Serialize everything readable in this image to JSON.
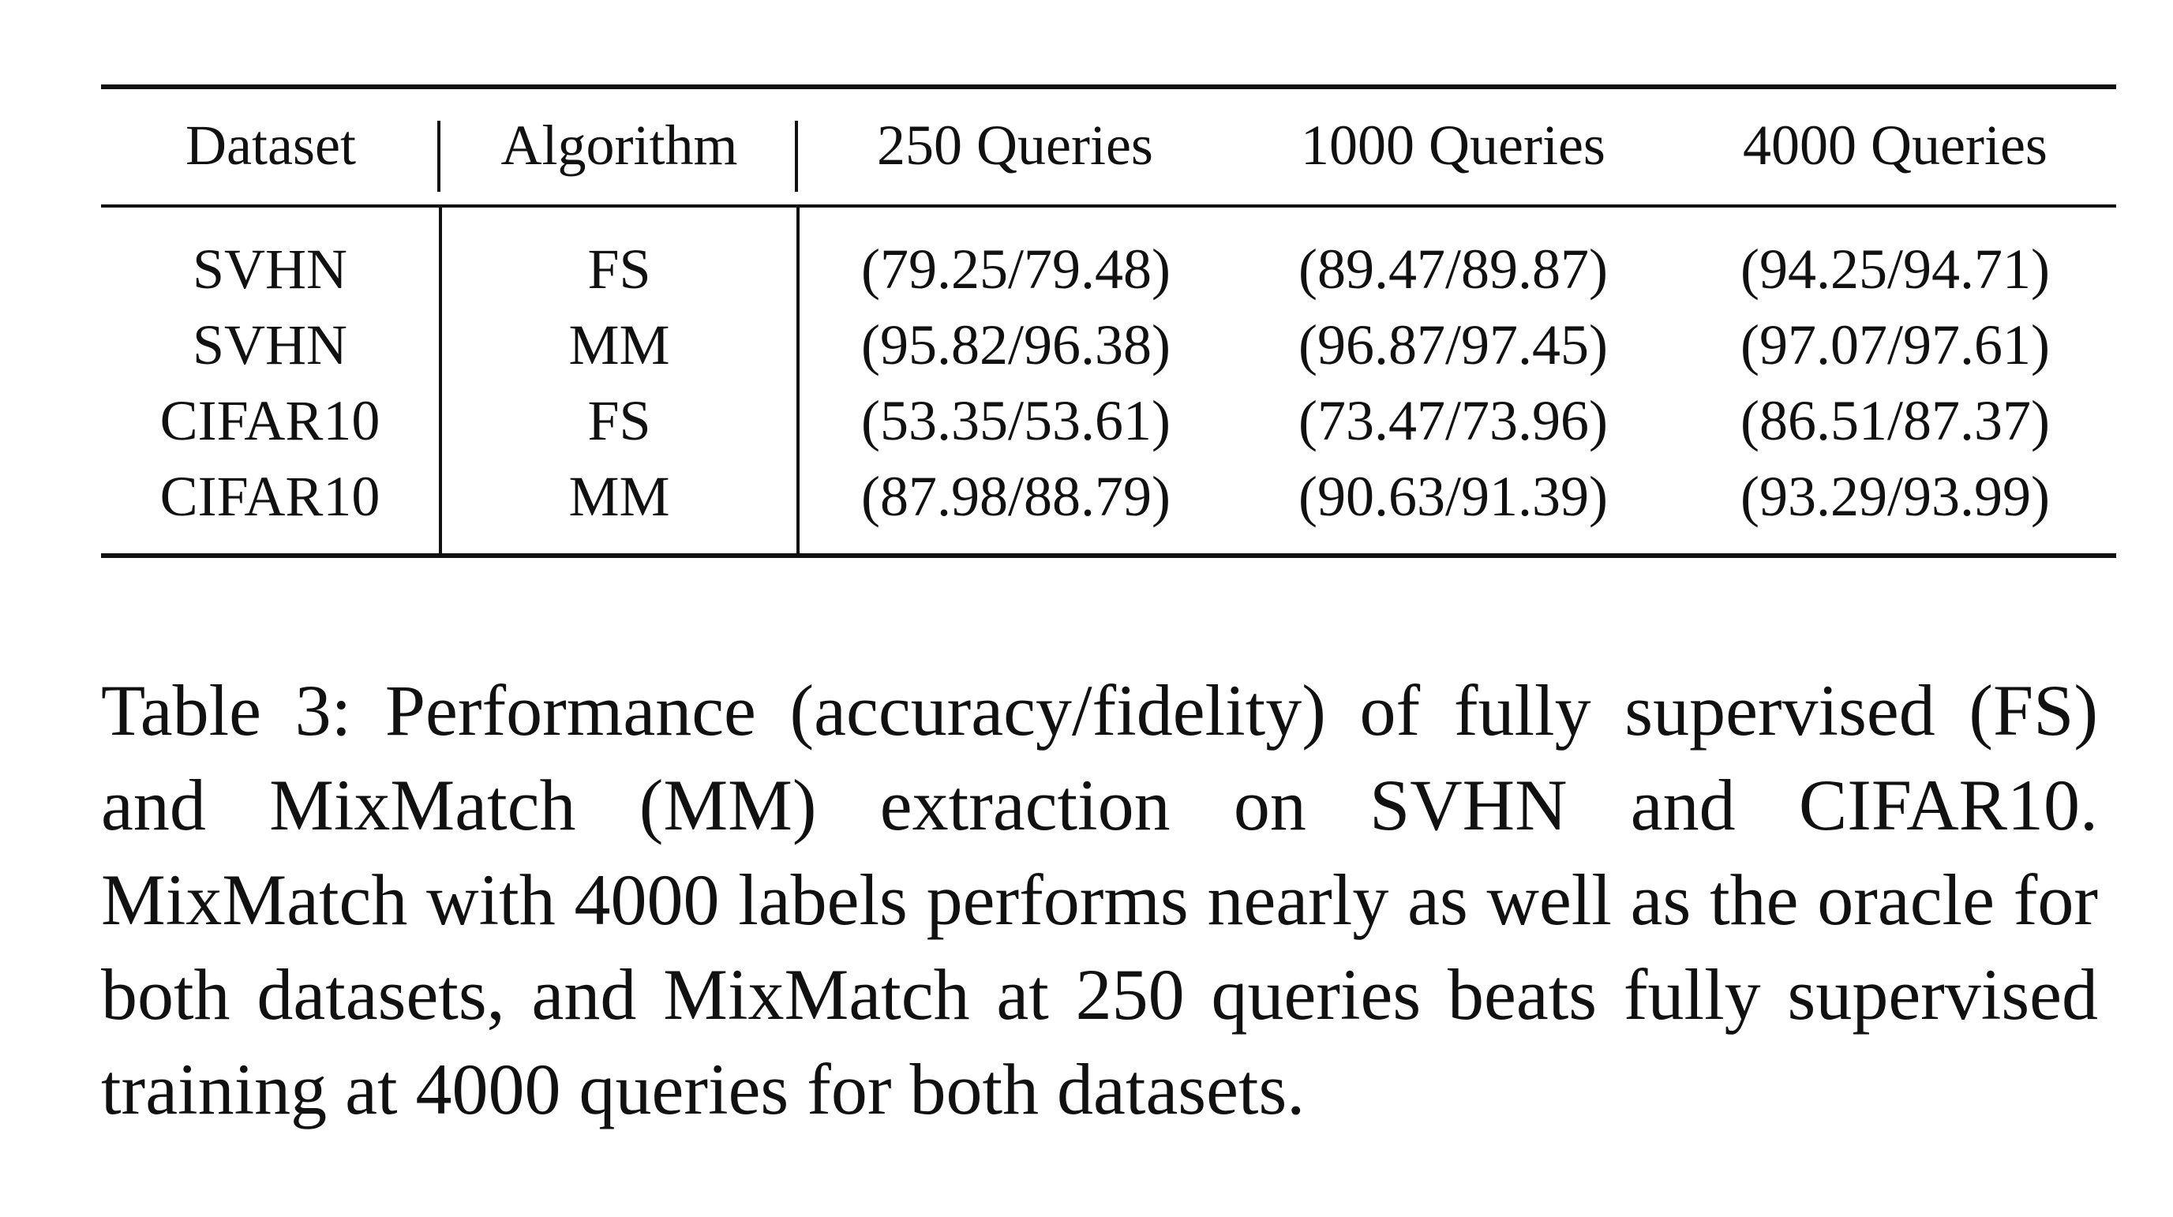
{
  "table": {
    "headers": [
      "Dataset",
      "Algorithm",
      "250 Queries",
      "1000 Queries",
      "4000 Queries"
    ],
    "rows": [
      {
        "dataset": "SVHN",
        "algorithm": "FS",
        "q250": "(79.25/79.48)",
        "q1000": "(89.47/89.87)",
        "q4000": "(94.25/94.71)"
      },
      {
        "dataset": "SVHN",
        "algorithm": "MM",
        "q250": "(95.82/96.38)",
        "q1000": "(96.87/97.45)",
        "q4000": "(97.07/97.61)"
      },
      {
        "dataset": "CIFAR10",
        "algorithm": "FS",
        "q250": "(53.35/53.61)",
        "q1000": "(73.47/73.96)",
        "q4000": "(86.51/87.37)"
      },
      {
        "dataset": "CIFAR10",
        "algorithm": "MM",
        "q250": "(87.98/88.79)",
        "q1000": "(90.63/91.39)",
        "q4000": "(93.29/93.99)"
      }
    ]
  },
  "caption": {
    "text": "Table 3: Performance (accuracy/fidelity) of fully supervised (FS) and MixMatch (MM) extraction on SVHN and CIFAR10. MixMatch with 4000 labels performs nearly as well as the oracle for both datasets, and MixMatch at 250 queries beats fully supervised training at 4000 queries for both datasets."
  }
}
